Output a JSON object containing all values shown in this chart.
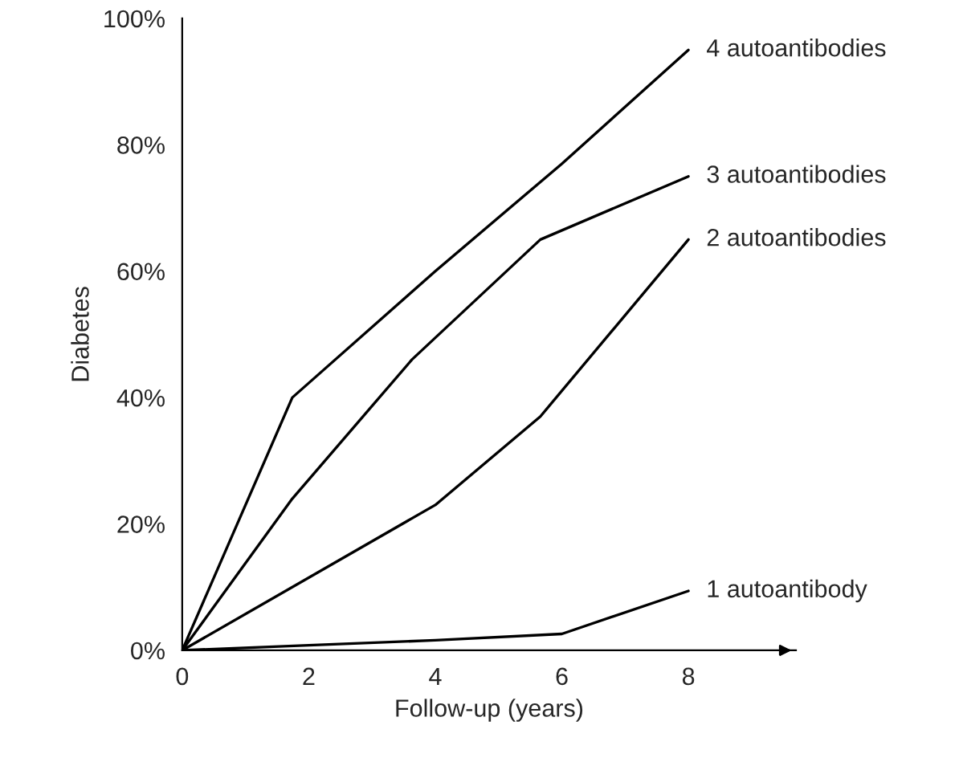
{
  "chart_data": {
    "type": "line",
    "xlabel": "Follow-up (years)",
    "ylabel": "Diabetes",
    "xlim": [
      0,
      9.7
    ],
    "xticks": [
      0,
      2,
      4,
      6,
      8
    ],
    "ylim": [
      0,
      100
    ],
    "yticks": [
      {
        "value": 0,
        "label": "0%"
      },
      {
        "value": 20,
        "label": "20%"
      },
      {
        "value": 40,
        "label": "40%"
      },
      {
        "value": 60,
        "label": "60%"
      },
      {
        "value": 80,
        "label": "80%"
      },
      {
        "value": 100,
        "label": "100%"
      }
    ],
    "grid": false,
    "legend": false,
    "marker": "none",
    "line_style": "solid",
    "series": [
      {
        "name": "4 autoantibodies",
        "color": "#000000",
        "x": [
          0,
          1.74,
          4,
          6,
          8
        ],
        "values": [
          0,
          40,
          60,
          77,
          95
        ]
      },
      {
        "name": "3 autoantibodies",
        "color": "#000000",
        "x": [
          0,
          1.74,
          3.63,
          5.66,
          8
        ],
        "values": [
          0,
          24,
          46,
          65,
          75
        ]
      },
      {
        "name": "2 autoantibodies",
        "color": "#000000",
        "x": [
          0,
          4,
          5.66,
          8
        ],
        "values": [
          0,
          23,
          37,
          65
        ]
      },
      {
        "name": "1 autoantibody",
        "color": "#000000",
        "x": [
          0,
          2,
          4,
          6,
          8
        ],
        "values": [
          0,
          0.8,
          1.6,
          2.6,
          9.4
        ]
      }
    ]
  }
}
